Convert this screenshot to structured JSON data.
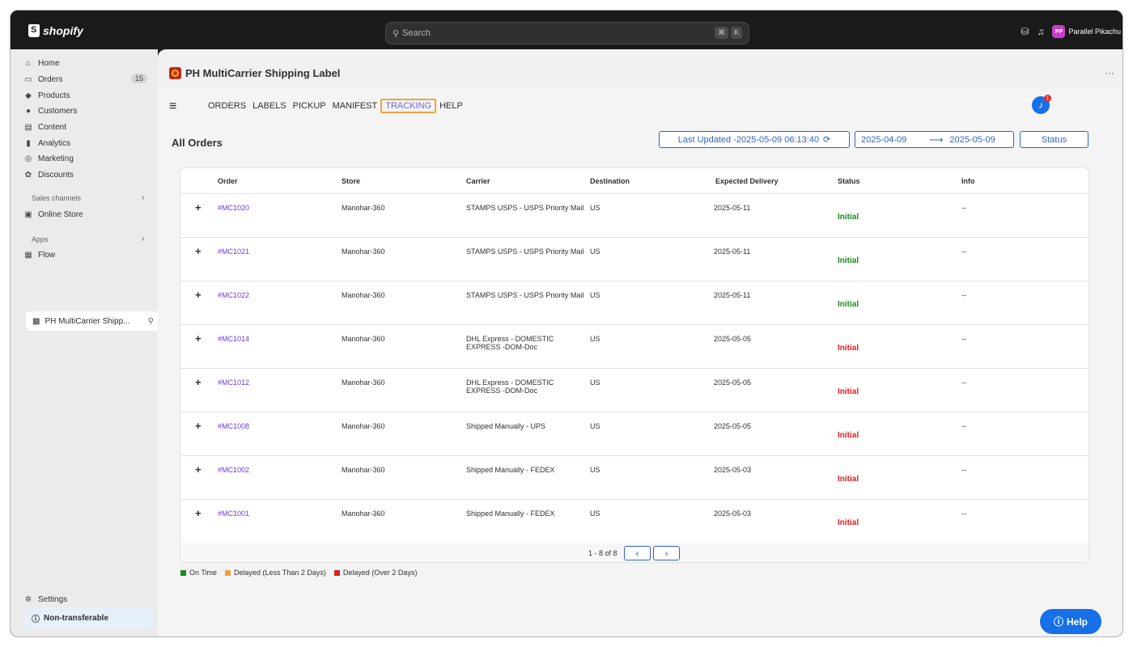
{
  "topbar": {
    "logo_text": "shopify",
    "search_placeholder": "Search",
    "shortcut_keys": [
      "⌘",
      "K"
    ],
    "user_initials": "PP",
    "user_name": "Parallel Pikachu"
  },
  "sidebar": {
    "items": [
      {
        "label": "Home",
        "icon": "home-icon"
      },
      {
        "label": "Orders",
        "icon": "orders-icon",
        "badge": "15"
      },
      {
        "label": "Products",
        "icon": "tag-icon"
      },
      {
        "label": "Customers",
        "icon": "person-icon"
      },
      {
        "label": "Content",
        "icon": "content-icon"
      },
      {
        "label": "Analytics",
        "icon": "analytics-icon"
      },
      {
        "label": "Marketing",
        "icon": "marketing-icon"
      },
      {
        "label": "Discounts",
        "icon": "discount-icon"
      }
    ],
    "sales_channels_label": "Sales channels",
    "online_store_label": "Online Store",
    "apps_label": "Apps",
    "flow_label": "Flow",
    "active_app_label": "PH MultiCarrier Shipp...",
    "settings_label": "Settings",
    "non_transferable_label": "Non-transferable"
  },
  "app": {
    "title": "PH MultiCarrier Shipping Label",
    "more_label": "···",
    "tabs": [
      "ORDERS",
      "LABELS",
      "PICKUP",
      "MANIFEST",
      "TRACKING",
      "HELP"
    ],
    "active_tab": "TRACKING",
    "bell_count": "1",
    "page_heading": "All Orders",
    "last_updated_label": "Last Updated -2025-05-09 06:13:40",
    "date_from": "2025-04-09",
    "date_arrow": "⟶",
    "date_to": "2025-05-09",
    "status_button": "Status"
  },
  "table": {
    "headers": [
      "Order",
      "Store",
      "Carrier",
      "Destination",
      "Expected Delivery",
      "Status",
      "Info"
    ],
    "rows": [
      {
        "order": "#MC1020",
        "store": "Manohar-360",
        "carrier": "STAMPS USPS - USPS Priority Mail",
        "destination": "US",
        "expected": "2025-05-11",
        "status": "Initial",
        "status_color": "#1a8a1a",
        "info": "--"
      },
      {
        "order": "#MC1021",
        "store": "Manohar-360",
        "carrier": "STAMPS USPS - USPS Priority Mail",
        "destination": "US",
        "expected": "2025-05-11",
        "status": "Initial",
        "status_color": "#1a8a1a",
        "info": "--"
      },
      {
        "order": "#MC1022",
        "store": "Manohar-360",
        "carrier": "STAMPS USPS - USPS Priority Mail",
        "destination": "US",
        "expected": "2025-05-11",
        "status": "Initial",
        "status_color": "#1a8a1a",
        "info": "--"
      },
      {
        "order": "#MC1014",
        "store": "Manohar-360",
        "carrier": "DHL Express - DOMESTIC EXPRESS -DOM-Doc",
        "destination": "US",
        "expected": "2025-05-05",
        "status": "Initial",
        "status_color": "#d92020",
        "info": "--"
      },
      {
        "order": "#MC1012",
        "store": "Manohar-360",
        "carrier": "DHL Express - DOMESTIC EXPRESS -DOM-Doc",
        "destination": "US",
        "expected": "2025-05-05",
        "status": "Initial",
        "status_color": "#d92020",
        "info": "--"
      },
      {
        "order": "#MC1008",
        "store": "Manohar-360",
        "carrier": "Shipped Manually - UPS",
        "destination": "US",
        "expected": "2025-05-05",
        "status": "Initial",
        "status_color": "#d92020",
        "info": "--"
      },
      {
        "order": "#MC1002",
        "store": "Manohar-360",
        "carrier": "Shipped Manually - FEDEX",
        "destination": "US",
        "expected": "2025-05-03",
        "status": "Initial",
        "status_color": "#d92020",
        "info": "--"
      },
      {
        "order": "#MC1001",
        "store": "Manohar-360",
        "carrier": "Shipped Manually - FEDEX",
        "destination": "US",
        "expected": "2025-05-03",
        "status": "Initial",
        "status_color": "#d92020",
        "info": "--"
      }
    ],
    "pagination_text": "1 - 8 of 8",
    "prev_label": "‹",
    "next_label": "›"
  },
  "legend": [
    {
      "label": "On Time",
      "color": "#1a8a1a"
    },
    {
      "label": "Delayed (Less Than 2 Days)",
      "color": "#f0a33b"
    },
    {
      "label": "Delayed (Over 2 Days)",
      "color": "#d92020"
    }
  ],
  "help_fab_label": "Help"
}
